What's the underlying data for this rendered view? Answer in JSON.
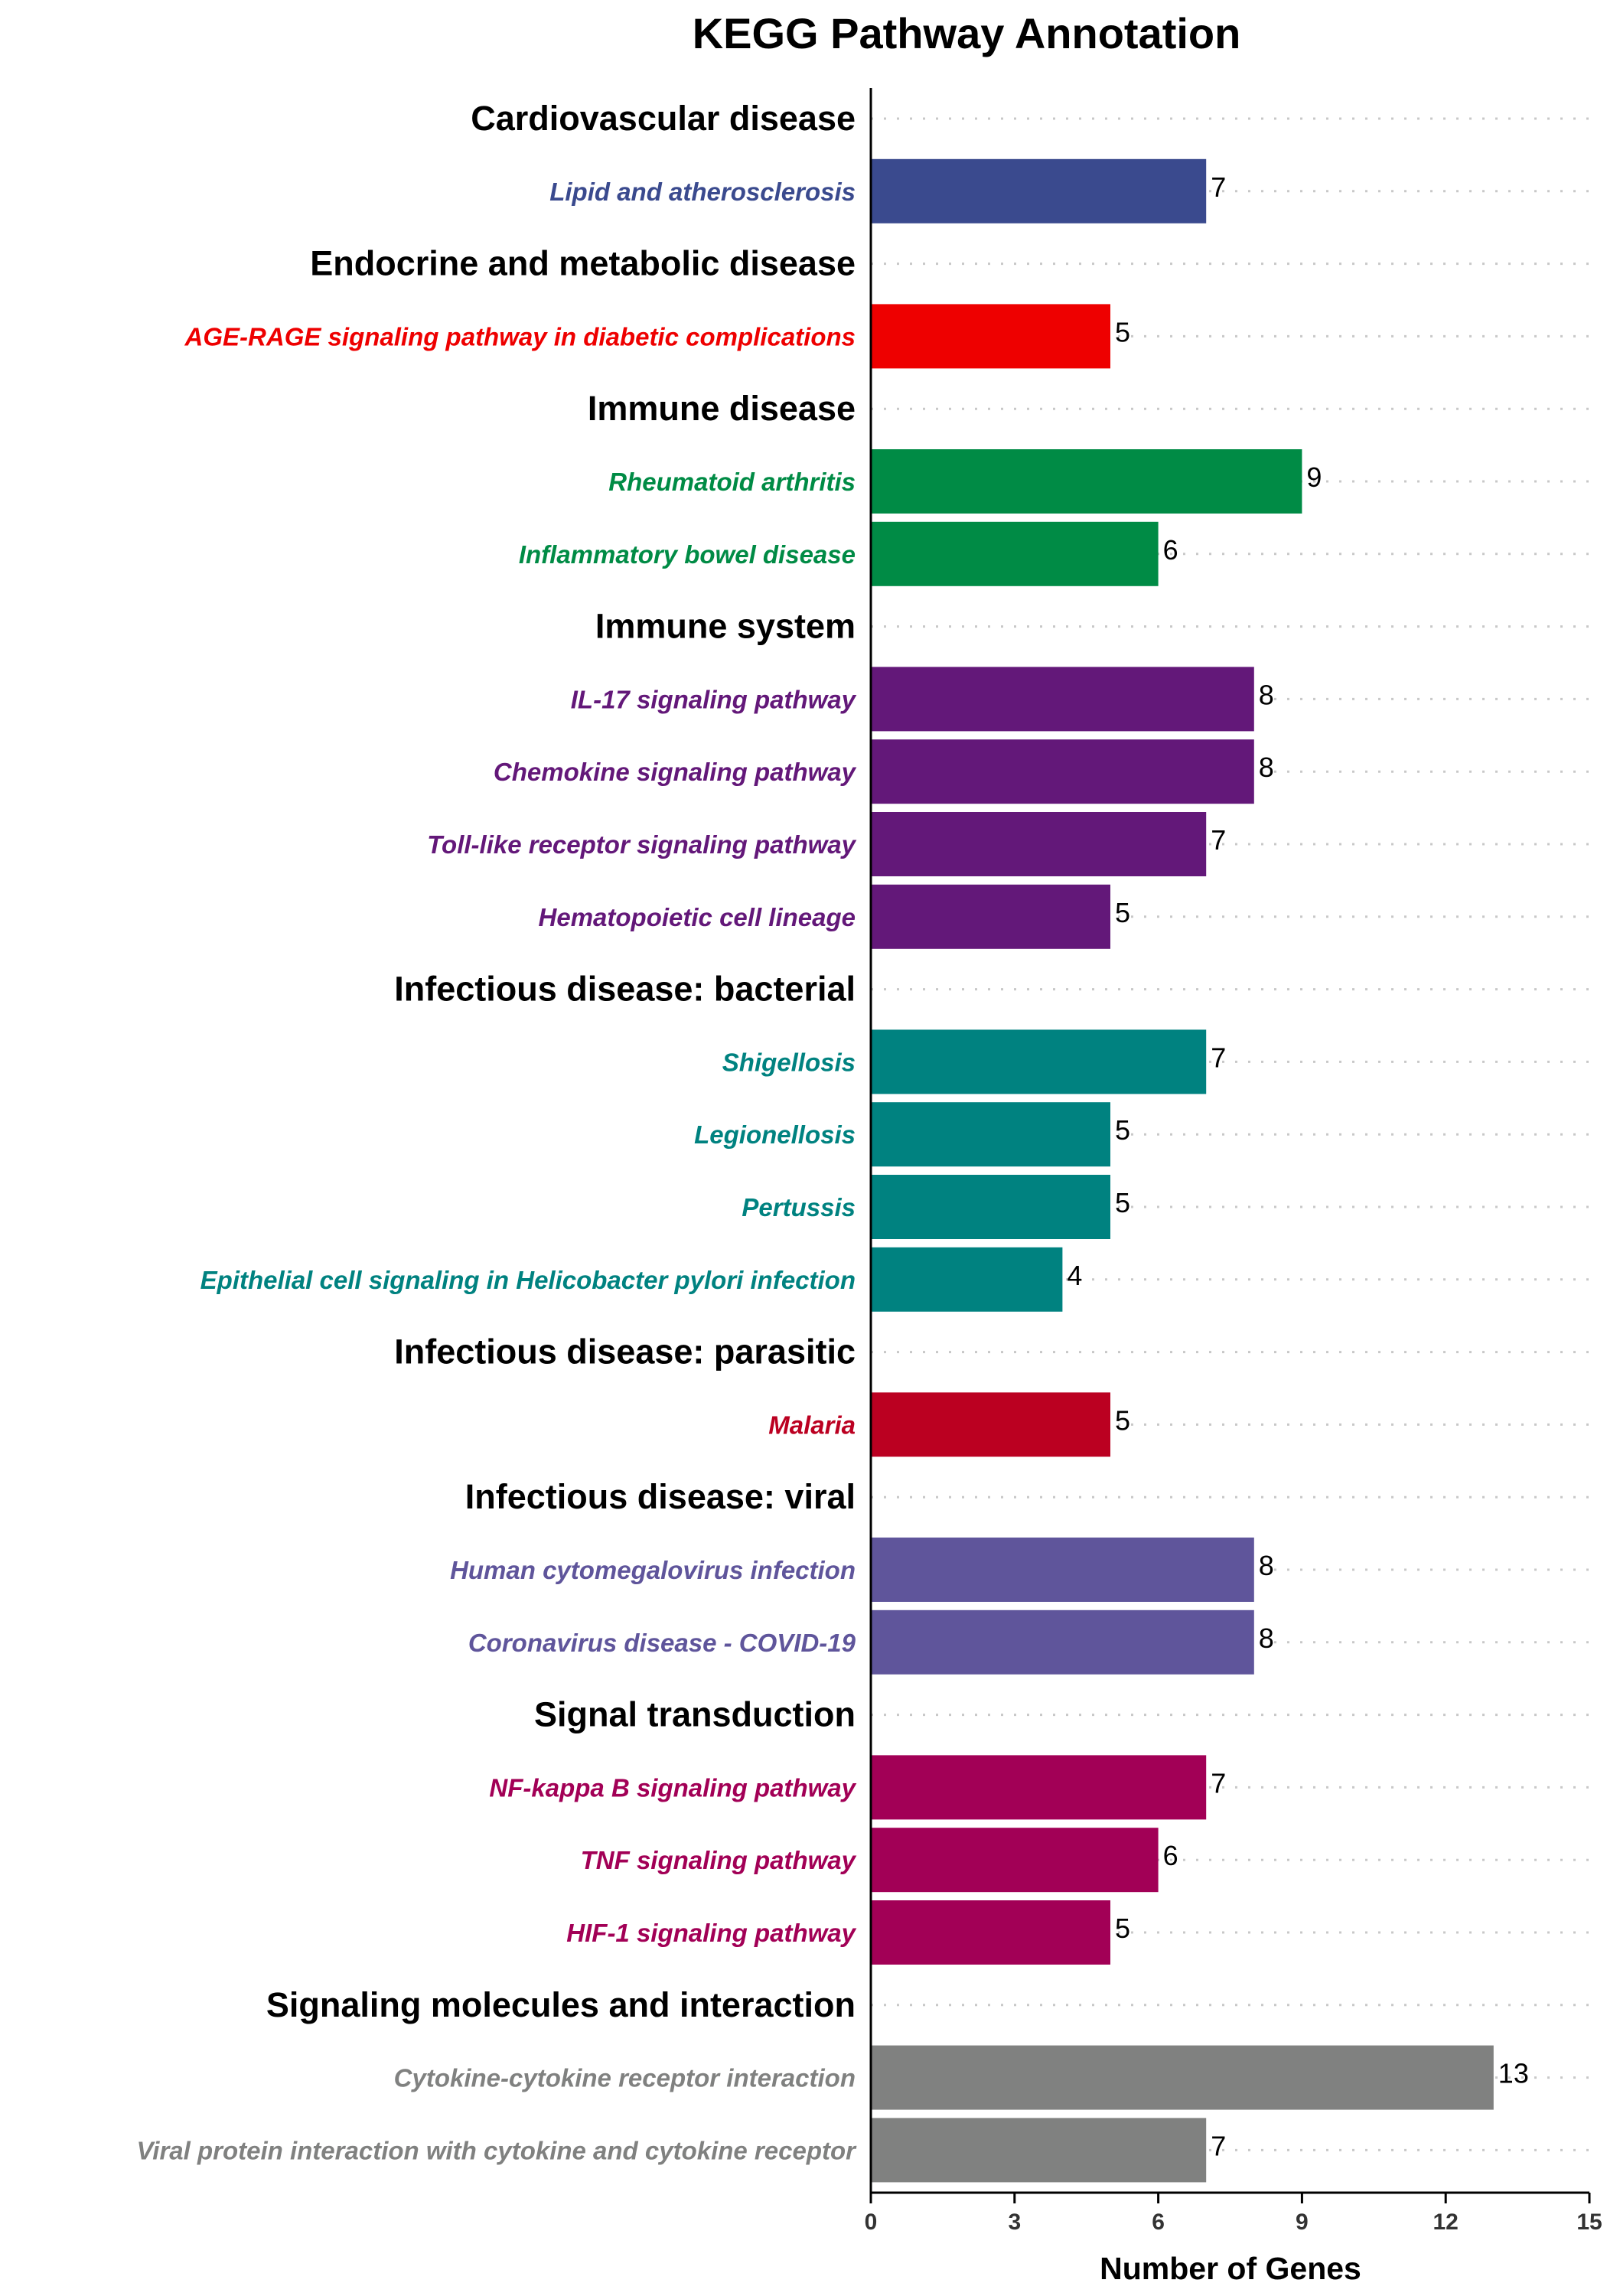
{
  "chart_data": {
    "type": "bar",
    "orientation": "horizontal",
    "title": "KEGG Pathway Annotation",
    "xlabel": "Number of Genes",
    "ylabel": "",
    "xlim": [
      0,
      15
    ],
    "xticks": [
      0,
      3,
      6,
      9,
      12,
      15
    ],
    "grid": "dotted horizontal",
    "legend": "none",
    "groups": [
      {
        "name": "Cardiovascular disease",
        "color": "#3A4A8E",
        "items": [
          {
            "label": "Lipid and atherosclerosis",
            "value": 7
          }
        ]
      },
      {
        "name": "Endocrine and metabolic disease",
        "color": "#EE0000",
        "items": [
          {
            "label": "AGE-RAGE signaling pathway in diabetic complications",
            "value": 5
          }
        ]
      },
      {
        "name": "Immune disease",
        "color": "#008B45",
        "items": [
          {
            "label": "Rheumatoid arthritis",
            "value": 9
          },
          {
            "label": "Inflammatory bowel disease",
            "value": 6
          }
        ]
      },
      {
        "name": "Immune system",
        "color": "#631879",
        "items": [
          {
            "label": "IL-17 signaling pathway",
            "value": 8
          },
          {
            "label": "Chemokine signaling pathway",
            "value": 8
          },
          {
            "label": "Toll-like receptor signaling pathway",
            "value": 7
          },
          {
            "label": "Hematopoietic cell lineage",
            "value": 5
          }
        ]
      },
      {
        "name": "Infectious disease: bacterial",
        "color": "#008280",
        "items": [
          {
            "label": "Shigellosis",
            "value": 7
          },
          {
            "label": "Legionellosis",
            "value": 5
          },
          {
            "label": "Pertussis",
            "value": 5
          },
          {
            "label": "Epithelial cell signaling in Helicobacter pylori infection",
            "value": 4
          }
        ]
      },
      {
        "name": "Infectious disease: parasitic",
        "color": "#BB0021",
        "items": [
          {
            "label": "Malaria",
            "value": 5
          }
        ]
      },
      {
        "name": "Infectious disease: viral",
        "color": "#5F559B",
        "items": [
          {
            "label": "Human cytomegalovirus infection",
            "value": 8
          },
          {
            "label": "Coronavirus disease - COVID-19",
            "value": 8
          }
        ]
      },
      {
        "name": "Signal transduction",
        "color": "#A20056",
        "items": [
          {
            "label": "NF-kappa B signaling pathway",
            "value": 7
          },
          {
            "label": "TNF signaling pathway",
            "value": 6
          },
          {
            "label": "HIF-1 signaling pathway",
            "value": 5
          }
        ]
      },
      {
        "name": "Signaling molecules and interaction",
        "color": "#808180",
        "items": [
          {
            "label": "Cytokine-cytokine receptor interaction",
            "value": 13
          },
          {
            "label": "Viral protein interaction with cytokine and cytokine receptor",
            "value": 7
          }
        ]
      }
    ]
  }
}
